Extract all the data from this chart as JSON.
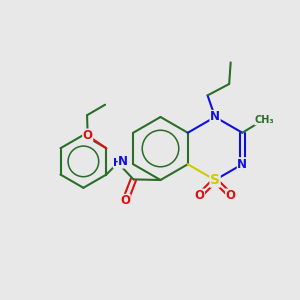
{
  "bg_color": "#e8e8e8",
  "bond_color": "#2a6e2a",
  "bond_width": 1.5,
  "atom_colors": {
    "N": "#1010dd",
    "O": "#dd1010",
    "S": "#cccc00",
    "C": "#2a6e2a"
  },
  "font_size": 8.5,
  "title": ""
}
